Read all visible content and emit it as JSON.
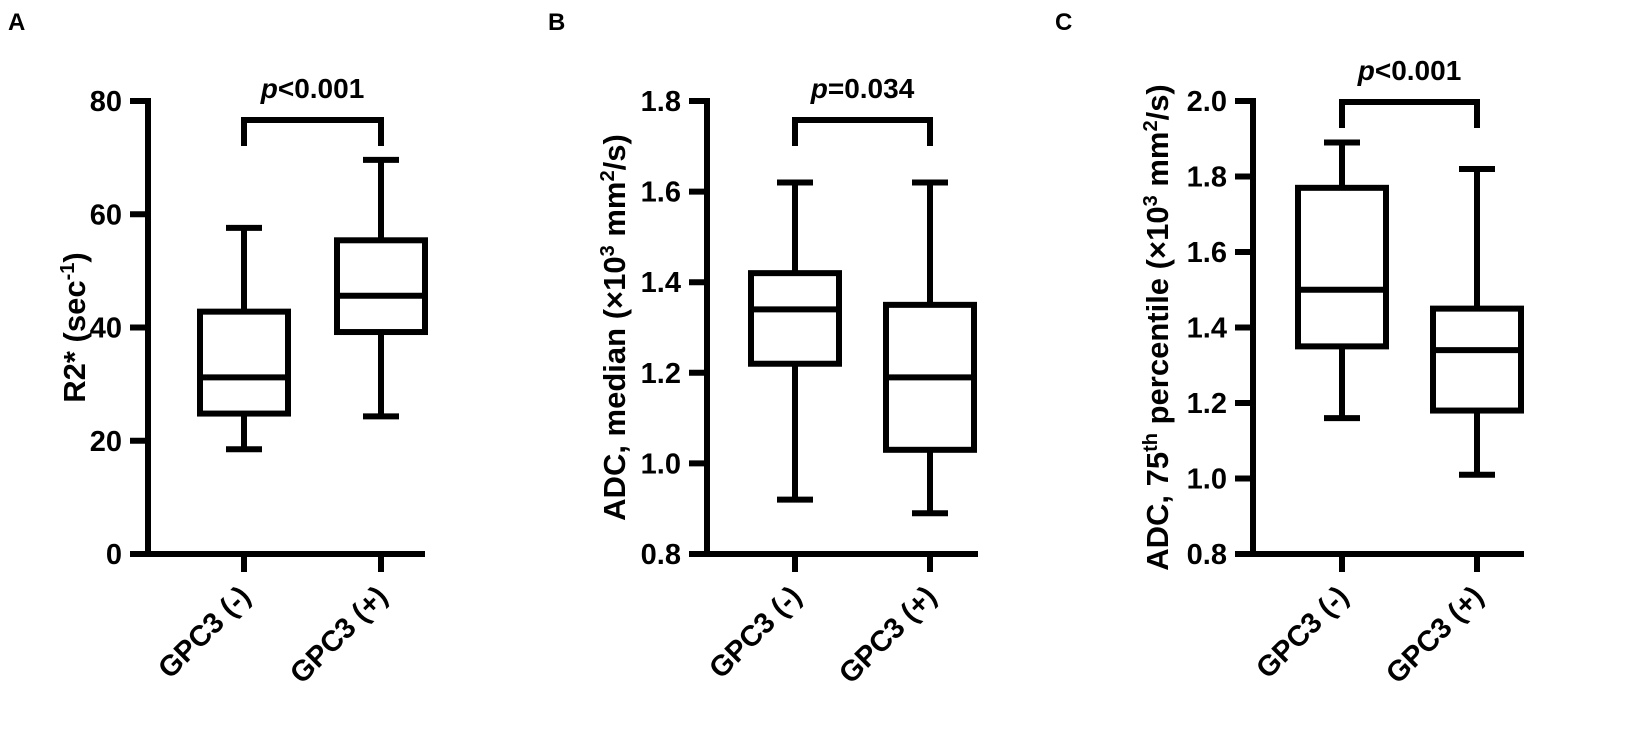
{
  "figure": {
    "panels": [
      "A",
      "B",
      "C"
    ]
  },
  "chart_data": [
    {
      "type": "boxplot",
      "panel": "A",
      "ylabel": {
        "base": "R2* (sec",
        "sup": "-1",
        "tail": ")"
      },
      "ylim": [
        0,
        80
      ],
      "yticks": [
        0,
        20,
        40,
        60,
        80
      ],
      "categories": [
        "GPC3 (-)",
        "GPC3 (+)"
      ],
      "boxes": [
        {
          "category": "GPC3 (-)",
          "min": 18.5,
          "q1": 24.8,
          "median": 31.2,
          "q3": 42.8,
          "max": 57.6
        },
        {
          "category": "GPC3 (+)",
          "min": 24.3,
          "q1": 39.2,
          "median": 45.6,
          "q3": 55.4,
          "max": 69.6
        }
      ],
      "significance": {
        "p_italic": "p",
        "text": "<0.001"
      }
    },
    {
      "type": "boxplot",
      "panel": "B",
      "ylabel": {
        "base": "ADC, median (×10",
        "sup": "3",
        "mid": " mm",
        "sup2": "2",
        "tail": "/s)"
      },
      "ylim": [
        0.8,
        1.8
      ],
      "yticks": [
        0.8,
        1.0,
        1.2,
        1.4,
        1.6,
        1.8
      ],
      "categories": [
        "GPC3 (-)",
        "GPC3 (+)"
      ],
      "boxes": [
        {
          "category": "GPC3 (-)",
          "min": 0.92,
          "q1": 1.22,
          "median": 1.34,
          "q3": 1.42,
          "max": 1.62
        },
        {
          "category": "GPC3 (+)",
          "min": 0.89,
          "q1": 1.03,
          "median": 1.19,
          "q3": 1.35,
          "max": 1.62
        }
      ],
      "significance": {
        "p_italic": "p",
        "text": "=0.034"
      }
    },
    {
      "type": "boxplot",
      "panel": "C",
      "ylabel": {
        "base": "ADC, 75",
        "sup": "th",
        "mid": " percentile (×10",
        "sup2": "3",
        "tail": " mm",
        "sup3": "2",
        "tail2": "/s)"
      },
      "ylim": [
        0.8,
        2.0
      ],
      "yticks": [
        0.8,
        1.0,
        1.2,
        1.4,
        1.6,
        1.8,
        2.0
      ],
      "categories": [
        "GPC3 (-)",
        "GPC3 (+)"
      ],
      "boxes": [
        {
          "category": "GPC3 (-)",
          "min": 1.16,
          "q1": 1.35,
          "median": 1.5,
          "q3": 1.77,
          "max": 1.89
        },
        {
          "category": "GPC3 (+)",
          "min": 1.01,
          "q1": 1.18,
          "median": 1.34,
          "q3": 1.45,
          "max": 1.82
        }
      ],
      "significance": {
        "p_italic": "p",
        "text": "<0.001"
      }
    }
  ]
}
